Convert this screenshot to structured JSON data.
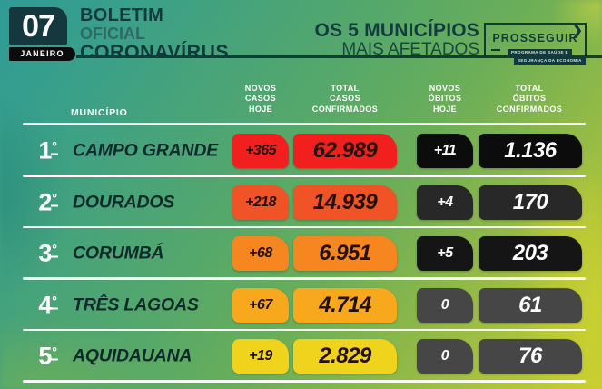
{
  "header": {
    "date_day": "07",
    "date_month": "JANEIRO",
    "title_line1": "BOLETIM",
    "title_line2": "OFICIAL",
    "title_line3": "CORONAVÍRUS",
    "subtitle_line1": "OS 5 MUNICÍPIOS",
    "subtitle_line2": "MAIS AFETADOS",
    "logo": {
      "name": "PROSSEGUIR",
      "chevron": "❯",
      "tagline_line1": "PROGRAMA DE SAÚDE E",
      "tagline_line2": "SEGURANÇA DA ECONOMIA"
    }
  },
  "table": {
    "header_municipio": "MUNICÍPIO",
    "header_new_cases": "NOVOS\nCASOS\nHOJE",
    "header_total_cases": "TOTAL\nCASOS\nCONFIRMADOS",
    "header_new_deaths": "NOVOS\nÓBITOS\nHOJE",
    "header_total_deaths": "TOTAL\nÓBITOS\nCONFIRMADOS",
    "ordinal_suffix": "º"
  },
  "colors": {
    "header_dark_teal": "#123a3d",
    "rule_white": "#ffffff",
    "rank_red": "#f1201f",
    "rank_orange_red": "#f05325",
    "rank_orange": "#f68620",
    "rank_amber": "#f8a81d",
    "rank_yellow": "#f0d31d"
  },
  "chart_data": {
    "type": "table",
    "title": "BOLETIM OFICIAL CORONAVÍRUS — OS 5 MUNICÍPIOS MAIS AFETADOS",
    "date": "07 JANEIRO",
    "columns": [
      "MUNICÍPIO",
      "NOVOS CASOS HOJE",
      "TOTAL CASOS CONFIRMADOS",
      "NOVOS ÓBITOS HOJE",
      "TOTAL ÓBITOS CONFIRMADOS"
    ],
    "rows": [
      {
        "rank": "1",
        "municipio": "CAMPO GRANDE",
        "novos_casos": "+365",
        "total_casos": "62.989",
        "novos_obitos": "+11",
        "total_obitos": "1.136",
        "case_color": "#f1201f",
        "death_color": "#0c0c0c"
      },
      {
        "rank": "2",
        "municipio": "DOURADOS",
        "novos_casos": "+218",
        "total_casos": "14.939",
        "novos_obitos": "+4",
        "total_obitos": "170",
        "case_color": "#f05325",
        "death_color": "#282828"
      },
      {
        "rank": "3",
        "municipio": "CORUMBÁ",
        "novos_casos": "+68",
        "total_casos": "6.951",
        "novos_obitos": "+5",
        "total_obitos": "203",
        "case_color": "#f68620",
        "death_color": "#151515"
      },
      {
        "rank": "4",
        "municipio": "TRÊS LAGOAS",
        "novos_casos": "+67",
        "total_casos": "4.714",
        "novos_obitos": "0",
        "total_obitos": "61",
        "case_color": "#f8a81d",
        "death_color": "#464646"
      },
      {
        "rank": "5",
        "municipio": "AQUIDAUANA",
        "novos_casos": "+19",
        "total_casos": "2.829",
        "novos_obitos": "0",
        "total_obitos": "76",
        "case_color": "#f0d31d",
        "death_color": "#464646"
      }
    ]
  }
}
